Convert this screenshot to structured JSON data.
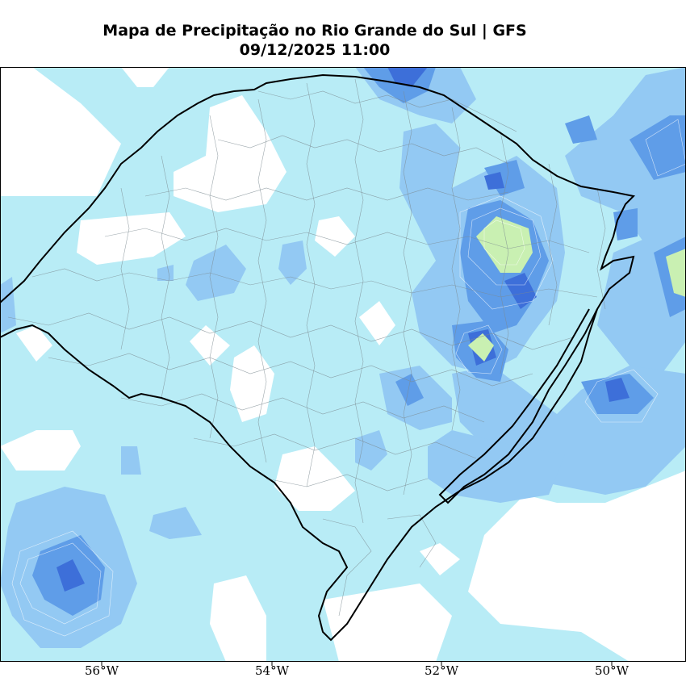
{
  "title": "Mapa de Precipitação no Rio Grande do Sul | GFS",
  "subtitle": "09/12/2025 11:00",
  "x_tick_labels": [
    "56°W",
    "54°W",
    "52°W",
    "50°W"
  ],
  "colors": {
    "background_dry": "#ffffff",
    "light_rain": "#b8ecf6",
    "moderate_rain": "#93c9f3",
    "heavy_rain": "#5f9de8",
    "very_heavy_rain": "#3d6fd9",
    "extreme_rain": "#c9f0b2",
    "border": "#000000",
    "municipal_lines": "#7b8a90"
  }
}
